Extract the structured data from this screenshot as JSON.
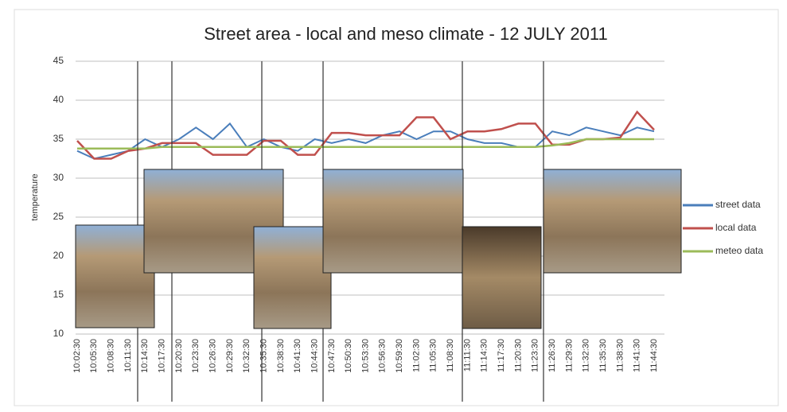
{
  "chart_data": {
    "type": "line",
    "title": "Street area - local and meso climate - 12 JULY 2011",
    "y_label": "temperature",
    "categories": [
      "10:02:30",
      "10:05:30",
      "10:08:30",
      "10:11:30",
      "10:14:30",
      "10:17:30",
      "10:20:30",
      "10:23:30",
      "10:26:30",
      "10:29:30",
      "10:32:30",
      "10:35:30",
      "10:38:30",
      "10:41:30",
      "10:44:30",
      "10:47:30",
      "10:50:30",
      "10:53:30",
      "10:56:30",
      "10:59:30",
      "11:02:30",
      "11:05:30",
      "11:08:30",
      "11:11:30",
      "11:14:30",
      "11:17:30",
      "11:20:30",
      "11:23:30",
      "11:26:30",
      "11:29:30",
      "11:32:30",
      "11:35:30",
      "11:38:30",
      "11:41:30",
      "11:44:30"
    ],
    "series": [
      {
        "name": "street data",
        "color": "#4a7ebb",
        "values": [
          33.5,
          32.5,
          33,
          33.5,
          35,
          34,
          35,
          36.5,
          35,
          37,
          34,
          35,
          34,
          33.5,
          35,
          34.5,
          35,
          34.5,
          35.5,
          36,
          35,
          36,
          36,
          35,
          34.5,
          34.5,
          34,
          34,
          36,
          35.5,
          36.5,
          36,
          35.5,
          36.5,
          36
        ]
      },
      {
        "name": "local data",
        "color": "#c0504d",
        "values": [
          34.8,
          32.5,
          32.5,
          33.5,
          33.8,
          34.5,
          34.5,
          34.5,
          33,
          33,
          33,
          34.8,
          34.8,
          33,
          33,
          35.8,
          35.8,
          35.5,
          35.5,
          35.5,
          37.8,
          37.8,
          35,
          36,
          36,
          36.3,
          37,
          37,
          34.3,
          34.3,
          35,
          35,
          35.2,
          38.5,
          36.2
        ]
      },
      {
        "name": "meteo data",
        "color": "#9bbb59",
        "values": [
          33.8,
          33.8,
          33.8,
          33.8,
          33.8,
          34,
          34,
          34,
          34,
          34,
          34,
          34,
          34,
          34,
          34,
          34,
          34,
          34,
          34,
          34,
          34,
          34,
          34,
          34,
          34,
          34,
          34,
          34,
          34.2,
          34.5,
          35,
          35,
          35,
          35,
          35
        ]
      }
    ],
    "ylim": [
      10,
      45
    ],
    "yticks": [
      10,
      15,
      20,
      25,
      30,
      35,
      40,
      45
    ],
    "grid": true
  }
}
